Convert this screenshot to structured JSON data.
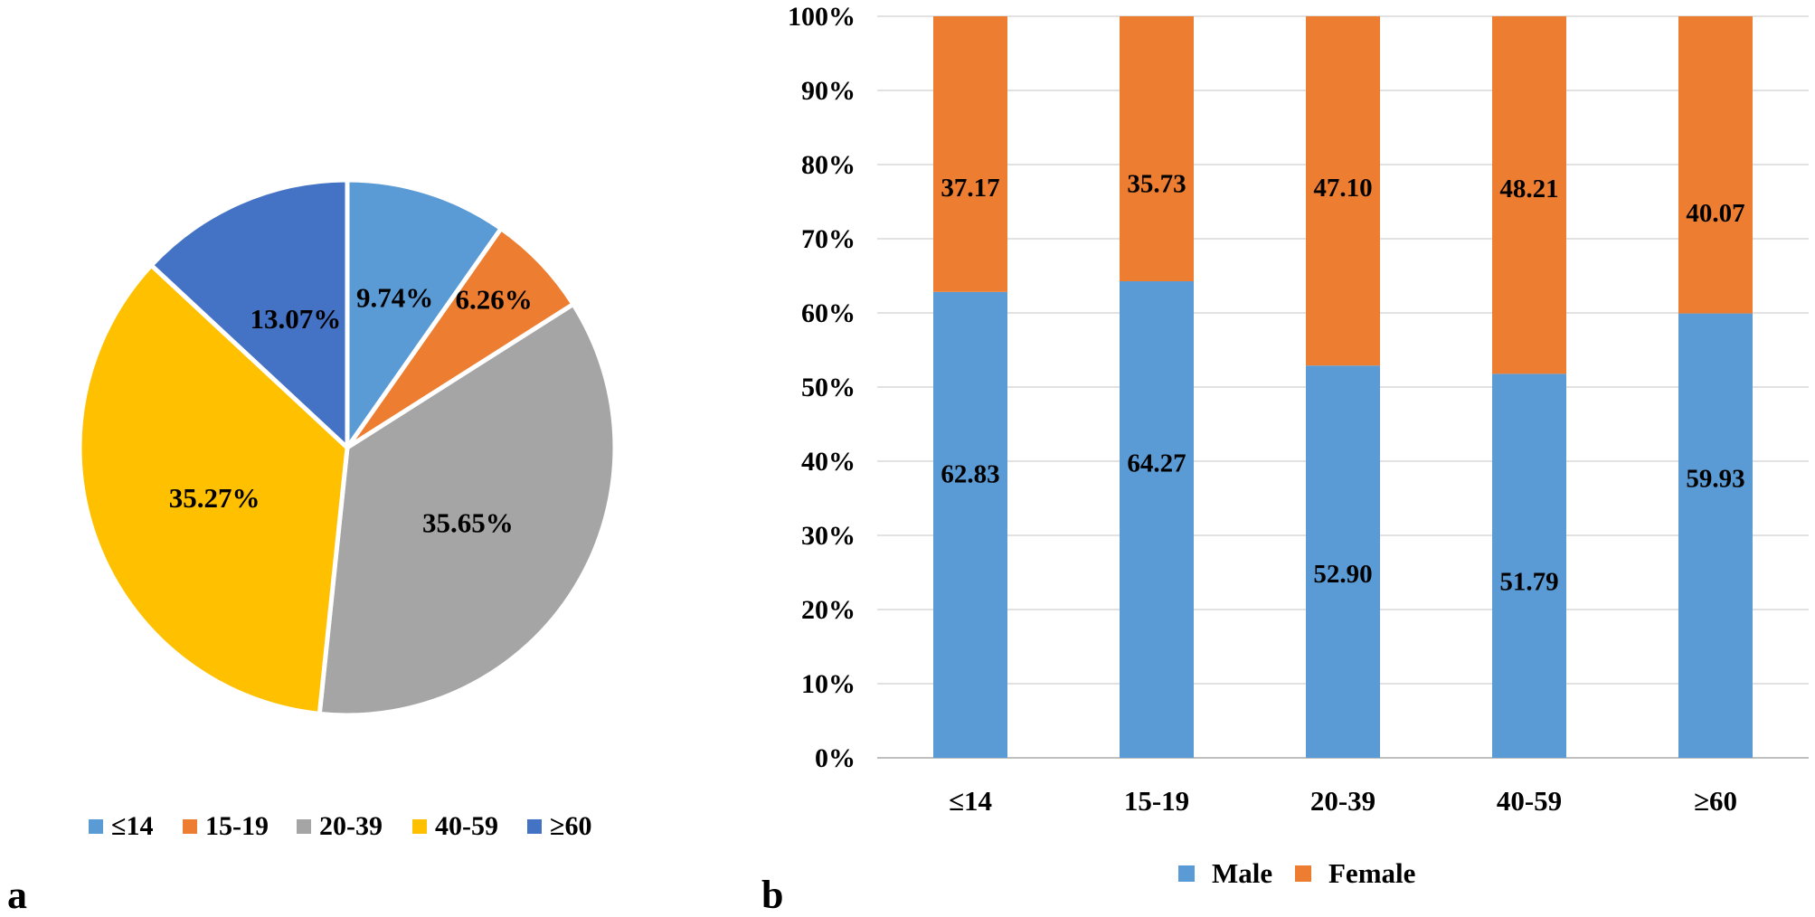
{
  "panel_labels": {
    "a": "a",
    "b": "b"
  },
  "colors": {
    "le14": "#5B9BD5",
    "15_19": "#ED7D31",
    "20_39": "#A5A5A5",
    "40_59": "#FFC000",
    "ge60": "#4472C4",
    "male": "#5B9BD5",
    "female": "#ED7D31",
    "grid": "#D9D9D9",
    "axis": "#BFBFBF"
  },
  "chart_data": [
    {
      "type": "pie",
      "title": "",
      "categories": [
        "≤14",
        "15-19",
        "20-39",
        "40-59",
        "≥60"
      ],
      "values": [
        9.74,
        6.26,
        35.65,
        35.27,
        13.07
      ],
      "labels": [
        "9.74%",
        "6.26%",
        "35.65%",
        "35.27%",
        "13.07%"
      ],
      "legend": [
        "≤14",
        "15-19",
        "20-39",
        "40-59",
        "≥60"
      ],
      "legend_position": "bottom"
    },
    {
      "type": "bar",
      "stacked": true,
      "percent": true,
      "title": "",
      "categories": [
        "≤14",
        "15-19",
        "20-39",
        "40-59",
        "≥60"
      ],
      "series": [
        {
          "name": "Male",
          "values": [
            62.83,
            64.27,
            52.9,
            51.79,
            59.93
          ],
          "labels": [
            "62.83",
            "64.27",
            "52.90",
            "51.79",
            "59.93"
          ]
        },
        {
          "name": "Female",
          "values": [
            37.17,
            35.73,
            47.1,
            48.21,
            40.07
          ],
          "labels": [
            "37.17",
            "35.73",
            "47.10",
            "48.21",
            "40.07"
          ]
        }
      ],
      "yticks": [
        "0%",
        "10%",
        "20%",
        "30%",
        "40%",
        "50%",
        "60%",
        "70%",
        "80%",
        "90%",
        "100%"
      ],
      "ylim": [
        0,
        100
      ],
      "legend": [
        "Male",
        "Female"
      ],
      "legend_position": "bottom",
      "grid": true
    }
  ]
}
